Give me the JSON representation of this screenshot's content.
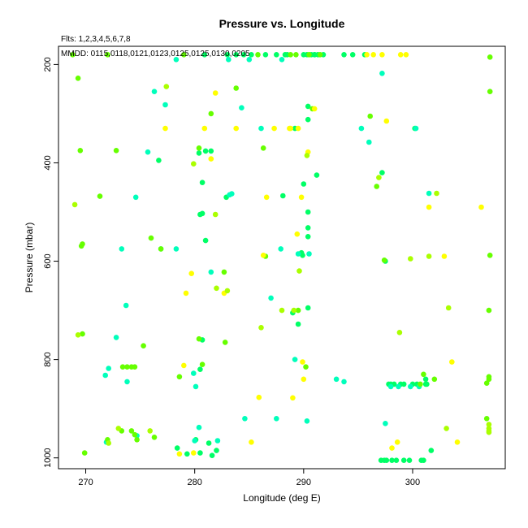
{
  "chart_data": {
    "type": "scatter",
    "title": "Pressure vs. Longitude",
    "xlabel": "Longitude (deg E)",
    "ylabel": "Pressure (mbar)",
    "xlim": [
      267.5,
      308.5
    ],
    "ylim": [
      1022,
      163
    ],
    "y_axis_inverted": true,
    "grid": false,
    "legend": "none",
    "annotations": {
      "flts": "Flts: 1,2,3,4,5,6,7,8",
      "mmdd": "MMDD: 0115,0118,0121,0123,0125,0125,0130,0205"
    },
    "x_ticks": [
      270,
      280,
      290,
      300
    ],
    "y_ticks": [
      200,
      400,
      600,
      800,
      1000
    ],
    "palette": {
      "g": "#00ff66",
      "c": "#00ffbb",
      "l": "#66ff00",
      "y": "#ffff00",
      "a": "#aaff00"
    },
    "series": [
      {
        "color_key": "g",
        "x": [
          280.9,
          283.0,
          283.8,
          284.5,
          285.2,
          286.5,
          290.0,
          290.3,
          290.7,
          291.0,
          291.3,
          291.8,
          293.7,
          294.5,
          295.6,
          287.5,
          288.5,
          290.4,
          290.4,
          289.2,
          280.4,
          281.0,
          281.5,
          280.5,
          280.7,
          281.0,
          280.7,
          282.9,
          288.1,
          290.0,
          290.4,
          289.0,
          290.4,
          289.8,
          290.4,
          280.7,
          289.5,
          289.9,
          290.4,
          279.3,
          280.5,
          281.6,
          282.0,
          278.4,
          280.1,
          291.2,
          297.8,
          298.0,
          298.3,
          298.9,
          299.2,
          300.0,
          300.4,
          301.2,
          281.3,
          300.2,
          301.2,
          301.3,
          297.1,
          297.4,
          297.6,
          298.1,
          298.5,
          299.2,
          299.7,
          300.8,
          301.0,
          301.7,
          280.5,
          276.7,
          291.0,
          288.3,
          297.5,
          297.2
        ],
        "y": [
          180,
          180,
          180,
          180,
          180,
          180,
          180,
          180,
          180,
          180,
          180,
          180,
          180,
          180,
          180,
          180,
          180,
          285,
          312,
          330,
          380,
          376,
          376,
          505,
          503,
          558,
          440,
          470,
          467,
          443,
          500,
          705,
          532,
          583,
          550,
          760,
          728,
          588,
          695,
          992,
          990,
          995,
          985,
          980,
          963,
          425,
          850,
          850,
          850,
          850,
          850,
          850,
          850,
          850,
          970,
          330,
          840,
          850,
          1005,
          1005,
          1005,
          1005,
          1005,
          1005,
          1005,
          1005,
          1005,
          985,
          820,
          395,
          180,
          180,
          600,
          420
        ]
      },
      {
        "color_key": "c",
        "x": [
          278.3,
          283.1,
          285.0,
          288.0,
          276.3,
          277.3,
          284.3,
          286.1,
          295.3,
          296.0,
          300.3,
          301.5,
          297.2,
          297.5,
          275.7,
          274.6,
          283.4,
          283.2,
          273.7,
          276.9,
          281.5,
          279.9,
          280.1,
          280.4,
          278.3,
          272.1,
          272.8,
          273.8,
          271.8,
          273.3,
          287.5,
          287.9,
          289.5,
          290.5,
          290.3,
          280.0,
          282.1,
          284.6,
          271.9,
          274.7,
          293.7,
          293.0,
          298.0,
          298.7,
          299.8,
          300.6,
          287.0,
          289.2
        ],
        "y": [
          190,
          190,
          190,
          190,
          255,
          282,
          288,
          330,
          330,
          358,
          330,
          462,
          218,
          930,
          378,
          470,
          463,
          465,
          690,
          575,
          622,
          828,
          855,
          938,
          575,
          818,
          755,
          845,
          832,
          575,
          920,
          575,
          585,
          585,
          925,
          965,
          965,
          920,
          968,
          955,
          845,
          840,
          855,
          855,
          855,
          855,
          675,
          800
        ]
      },
      {
        "color_key": "l",
        "x": [
          268.8,
          272.0,
          279.0,
          285.8,
          288.8,
          289.3,
          290.5,
          291.5,
          269.3,
          269.5,
          269.7,
          269.6,
          269.9,
          271.3,
          272.8,
          273.4,
          273.8,
          274.2,
          274.5,
          275.3,
          280.7,
          282.7,
          280.4,
          282.8,
          286.3,
          289.5,
          290.8,
          281.5,
          269.7,
          272.0,
          273.3,
          274.2,
          274.5,
          274.7,
          276.3,
          276.0,
          276.9,
          280.4,
          296.7,
          297.4,
          278.6,
          286.5,
          283.8,
          296.1,
          300.7,
          301.0,
          302.0,
          307.1,
          307.1,
          307.1,
          307.0,
          307.0,
          307.0,
          306.8,
          306.8,
          290.2
        ],
        "y": [
          180,
          180,
          180,
          180,
          180,
          180,
          180,
          180,
          228,
          375,
          565,
          569,
          990,
          468,
          375,
          815,
          815,
          815,
          815,
          772,
          810,
          622,
          758,
          765,
          370,
          700,
          290,
          300,
          748,
          963,
          945,
          945,
          953,
          963,
          958,
          553,
          575,
          370,
          448,
          598,
          835,
          590,
          248,
          305,
          850,
          830,
          840,
          185,
          255,
          588,
          700,
          835,
          840,
          848,
          920,
          815
        ]
      },
      {
        "color_key": "y",
        "x": [
          277.3,
          280.9,
          283.8,
          287.3,
          288.7,
          289.5,
          297.2,
          298.9,
          299.4,
          298.1,
          298.6,
          301.5,
          304.1,
          278.6,
          279.9,
          285.9,
          285.2,
          286.6,
          289.0,
          289.9,
          290.4,
          279.0,
          279.7,
          279.2,
          281.5,
          282.7,
          289.8,
          291.0,
          281.9,
          286.3,
          288.8,
          289.4,
          295.8,
          296.4,
          297.6,
          302.9,
          303.6,
          306.3,
          290.0
        ],
        "y": [
          330,
          330,
          330,
          330,
          330,
          330,
          180,
          180,
          180,
          980,
          968,
          490,
          968,
          992,
          990,
          877,
          968,
          470,
          878,
          805,
          378,
          812,
          625,
          665,
          392,
          665,
          470,
          290,
          258,
          588,
          330,
          545,
          180,
          180,
          315,
          590,
          805,
          490,
          840
        ]
      },
      {
        "color_key": "a",
        "x": [
          269.0,
          269.3,
          272.1,
          277.4,
          279.9,
          281.9,
          282.0,
          283.0,
          286.1,
          288.0,
          289.6,
          290.3,
          289.1,
          296.9,
          302.2,
          273.0,
          275.9,
          298.8,
          299.8,
          301.5,
          303.3,
          303.1,
          307.0,
          307.0,
          307.0,
          307.0
        ],
        "y": [
          485,
          750,
          970,
          245,
          402,
          505,
          655,
          660,
          735,
          700,
          620,
          385,
          700,
          430,
          462,
          940,
          945,
          745,
          595,
          590,
          695,
          940,
          932,
          940,
          945,
          948
        ]
      }
    ]
  }
}
